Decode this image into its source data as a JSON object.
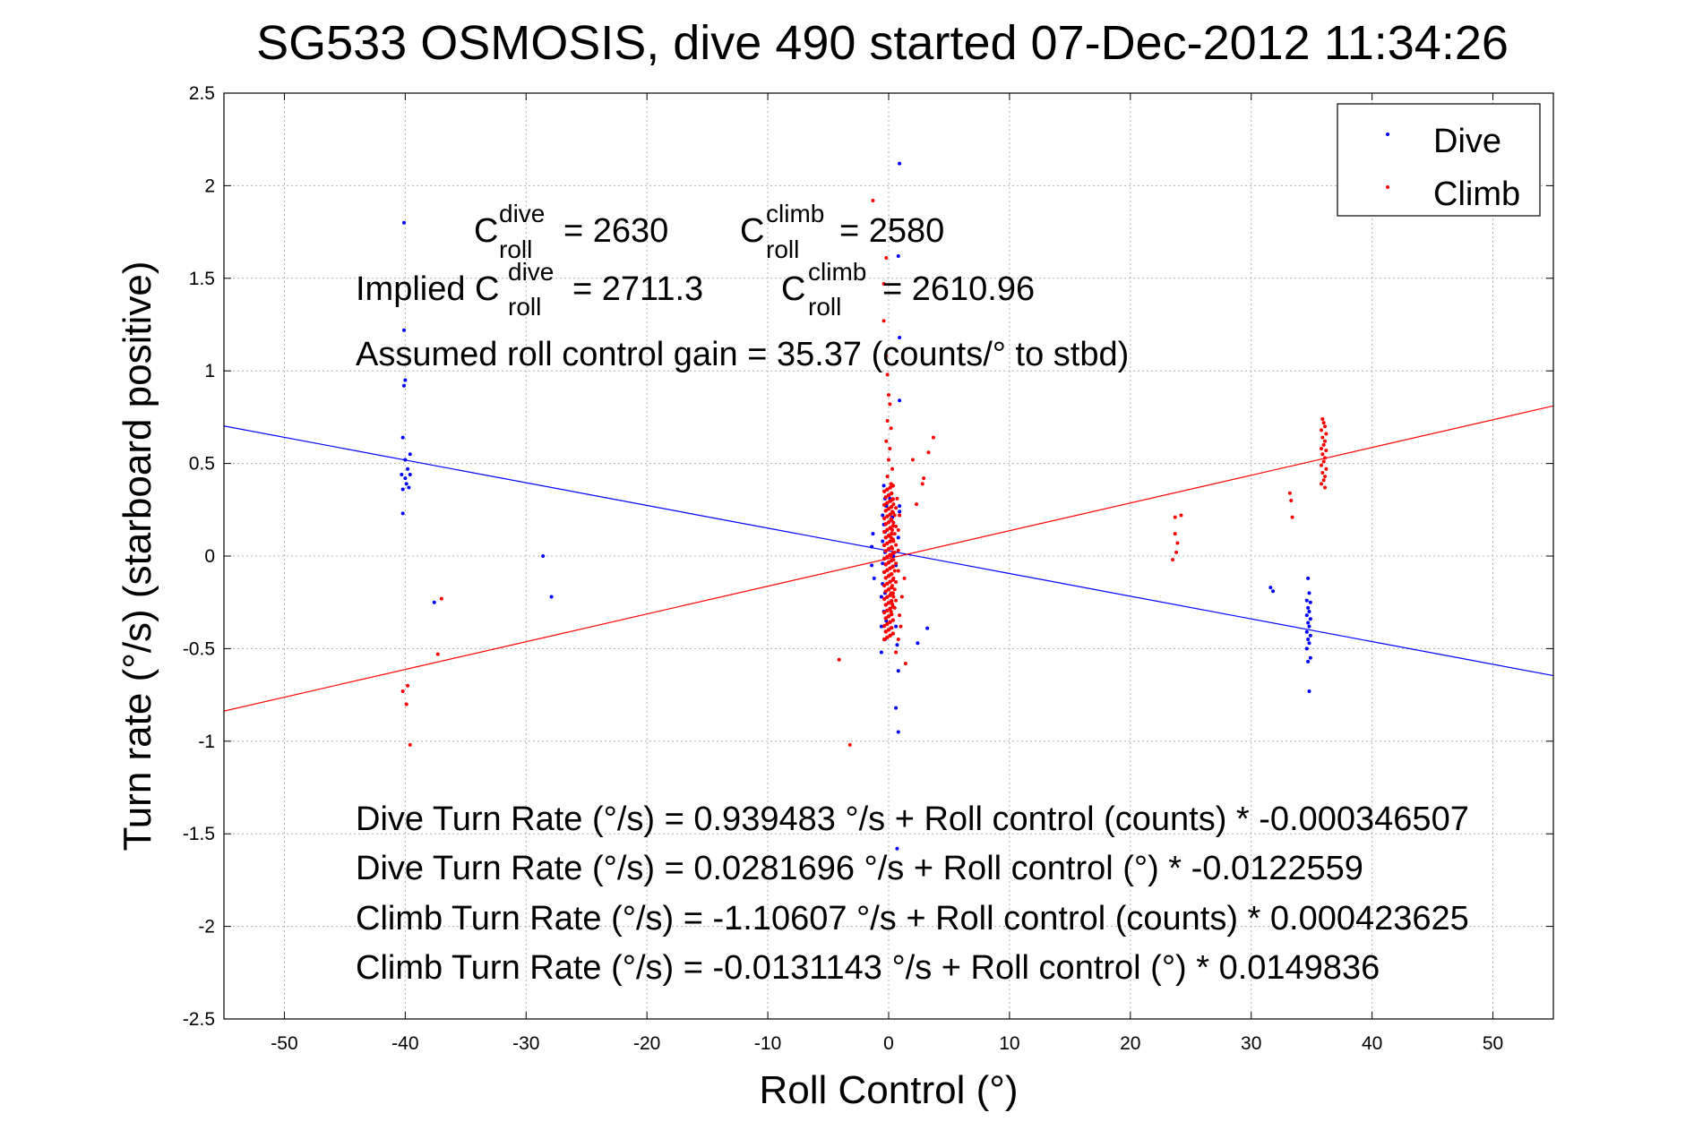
{
  "chart_data": {
    "type": "scatter",
    "title": "SG533 OSMOSIS, dive 490 started 07-Dec-2012 11:34:26",
    "xlabel": "Roll Control (°)",
    "ylabel": "Turn rate (°/s)  (starboard positive)",
    "xlim": [
      -55,
      55
    ],
    "ylim": [
      -2.5,
      2.5
    ],
    "x_ticks": [
      -50,
      -40,
      -30,
      -20,
      -10,
      0,
      10,
      20,
      30,
      40,
      50
    ],
    "y_ticks": [
      -2.5,
      -2,
      -1.5,
      -1,
      -0.5,
      0,
      0.5,
      1,
      1.5,
      2,
      2.5
    ],
    "x_tick_labels": [
      "-50",
      "-40",
      "-30",
      "-20",
      "-10",
      "0",
      "10",
      "20",
      "30",
      "40",
      "50"
    ],
    "y_tick_labels": [
      "-2.5",
      "-2",
      "-1.5",
      "-1",
      "-0.5",
      "0",
      "0.5",
      "1",
      "1.5",
      "2",
      "2.5"
    ],
    "grid": true,
    "legend_position": "top-right",
    "legend": [
      {
        "label": "Dive",
        "color": "#0000ff"
      },
      {
        "label": "Climb",
        "color": "#ff0000"
      }
    ],
    "series": [
      {
        "name": "Dive",
        "color": "#0000ff",
        "points": [
          [
            -40.1,
            1.8
          ],
          [
            -40.1,
            1.22
          ],
          [
            -40.0,
            0.95
          ],
          [
            -40.1,
            0.92
          ],
          [
            -40.2,
            0.64
          ],
          [
            -40.0,
            0.52
          ],
          [
            -39.6,
            0.55
          ],
          [
            -39.8,
            0.47
          ],
          [
            -39.6,
            0.44
          ],
          [
            -40.0,
            0.42
          ],
          [
            -40.3,
            0.44
          ],
          [
            -39.9,
            0.39
          ],
          [
            -40.2,
            0.36
          ],
          [
            -39.7,
            0.37
          ],
          [
            -40.2,
            0.23
          ],
          [
            -37.6,
            -0.25
          ],
          [
            -28.6,
            0.0
          ],
          [
            -27.9,
            -0.22
          ],
          [
            -0.4,
            0.38
          ],
          [
            -0.3,
            0.31
          ],
          [
            -0.2,
            0.27
          ],
          [
            -0.5,
            0.22
          ],
          [
            -0.4,
            0.17
          ],
          [
            -0.3,
            0.13
          ],
          [
            -1.3,
            0.12
          ],
          [
            -1.4,
            0.05
          ],
          [
            -0.5,
            0.08
          ],
          [
            -0.3,
            0.02
          ],
          [
            -0.5,
            -0.04
          ],
          [
            -1.4,
            -0.05
          ],
          [
            -1.2,
            -0.12
          ],
          [
            -0.5,
            -0.15
          ],
          [
            -0.3,
            -0.2
          ],
          [
            -0.6,
            -0.22
          ],
          [
            -0.4,
            -0.3
          ],
          [
            -0.2,
            -0.35
          ],
          [
            -0.6,
            -0.38
          ],
          [
            -0.3,
            -0.45
          ],
          [
            -0.6,
            -0.52
          ],
          [
            0.1,
            0.31
          ],
          [
            0.3,
            0.21
          ],
          [
            0.4,
            0.0
          ],
          [
            0.9,
            0.27
          ],
          [
            0.9,
            0.24
          ],
          [
            0.8,
            0.1
          ],
          [
            0.6,
            -0.05
          ],
          [
            0.6,
            -0.38
          ],
          [
            0.7,
            -0.48
          ],
          [
            0.8,
            -0.62
          ],
          [
            0.6,
            -0.82
          ],
          [
            0.8,
            -0.95
          ],
          [
            0.9,
            2.12
          ],
          [
            0.8,
            1.62
          ],
          [
            0.9,
            1.18
          ],
          [
            0.9,
            0.84
          ],
          [
            0.7,
            -1.58
          ],
          [
            2.4,
            -0.47
          ],
          [
            3.2,
            -0.39
          ],
          [
            31.6,
            -0.17
          ],
          [
            31.8,
            -0.19
          ],
          [
            34.7,
            -0.12
          ],
          [
            34.8,
            -0.2
          ],
          [
            34.6,
            -0.24
          ],
          [
            34.9,
            -0.25
          ],
          [
            34.7,
            -0.28
          ],
          [
            34.8,
            -0.3
          ],
          [
            34.6,
            -0.32
          ],
          [
            34.9,
            -0.34
          ],
          [
            34.7,
            -0.36
          ],
          [
            34.8,
            -0.38
          ],
          [
            34.6,
            -0.41
          ],
          [
            34.9,
            -0.43
          ],
          [
            34.7,
            -0.45
          ],
          [
            34.8,
            -0.47
          ],
          [
            34.6,
            -0.5
          ],
          [
            34.9,
            -0.55
          ],
          [
            34.7,
            -0.57
          ],
          [
            34.8,
            -0.73
          ]
        ]
      },
      {
        "name": "Climb",
        "color": "#ff0000",
        "points": [
          [
            -40.2,
            -0.73
          ],
          [
            -39.8,
            -0.7
          ],
          [
            -39.9,
            -0.8
          ],
          [
            -39.6,
            -1.02
          ],
          [
            -37.3,
            -0.53
          ],
          [
            -37.0,
            -0.23
          ],
          [
            -4.1,
            -0.56
          ],
          [
            -3.2,
            -1.02
          ],
          [
            -1.3,
            1.92
          ],
          [
            -0.2,
            1.61
          ],
          [
            -0.4,
            1.47
          ],
          [
            -0.4,
            1.27
          ],
          [
            -0.2,
            1.08
          ],
          [
            -0.1,
            0.98
          ],
          [
            0.0,
            0.87
          ],
          [
            0.1,
            0.82
          ],
          [
            -0.1,
            0.73
          ],
          [
            0.2,
            0.69
          ],
          [
            -0.2,
            0.62
          ],
          [
            0.1,
            0.58
          ],
          [
            0.0,
            0.52
          ],
          [
            0.3,
            0.47
          ],
          [
            -0.1,
            0.43
          ],
          [
            0.2,
            0.39
          ],
          [
            0.7,
            0.31
          ],
          [
            0.9,
            0.22
          ],
          [
            0.8,
            0.14
          ],
          [
            0.8,
            0.03
          ],
          [
            0.8,
            -0.08
          ],
          [
            1.3,
            -0.12
          ],
          [
            1.1,
            -0.22
          ],
          [
            0.9,
            -0.32
          ],
          [
            1.0,
            -0.38
          ],
          [
            0.8,
            -0.45
          ],
          [
            0.6,
            -0.52
          ],
          [
            1.4,
            -0.58
          ],
          [
            2.0,
            0.52
          ],
          [
            2.3,
            0.28
          ],
          [
            2.8,
            0.39
          ],
          [
            2.9,
            0.42
          ],
          [
            3.3,
            0.56
          ],
          [
            3.7,
            0.64
          ],
          [
            23.7,
            0.21
          ],
          [
            24.2,
            0.22
          ],
          [
            23.7,
            0.12
          ],
          [
            23.9,
            0.07
          ],
          [
            23.8,
            0.02
          ],
          [
            23.5,
            -0.02
          ],
          [
            33.2,
            0.34
          ],
          [
            33.3,
            0.3
          ],
          [
            33.4,
            0.21
          ],
          [
            35.9,
            0.74
          ],
          [
            36.0,
            0.72
          ],
          [
            36.1,
            0.7
          ],
          [
            35.8,
            0.68
          ],
          [
            36.2,
            0.66
          ],
          [
            35.9,
            0.64
          ],
          [
            36.1,
            0.62
          ],
          [
            36.0,
            0.6
          ],
          [
            35.8,
            0.58
          ],
          [
            36.2,
            0.57
          ],
          [
            35.9,
            0.55
          ],
          [
            36.1,
            0.53
          ],
          [
            36.0,
            0.51
          ],
          [
            35.8,
            0.49
          ],
          [
            36.2,
            0.47
          ],
          [
            35.9,
            0.45
          ],
          [
            36.1,
            0.43
          ],
          [
            36.0,
            0.41
          ],
          [
            35.8,
            0.39
          ],
          [
            36.1,
            0.37
          ]
        ]
      }
    ],
    "dense_cluster": {
      "center_x": 0.0,
      "y_range": [
        -0.45,
        0.38
      ]
    },
    "fit_lines": [
      {
        "name": "Dive",
        "color": "#0000ff",
        "intercept": 0.0281696,
        "slope": -0.0122559
      },
      {
        "name": "Climb",
        "color": "#ff0000",
        "intercept": -0.0131143,
        "slope": 0.0149836
      }
    ],
    "annotations": {
      "c_roll_dive": {
        "base": "C",
        "sup": "dive",
        "sub": "roll",
        "value": "= 2630"
      },
      "c_roll_climb": {
        "base": "C",
        "sup": "climb",
        "sub": "roll",
        "value": "= 2580"
      },
      "implied_prefix": "Implied C",
      "implied_dive": {
        "sup": "dive",
        "sub": "roll",
        "value": "= 2711.3"
      },
      "implied_climb": {
        "base": "C",
        "sup": "climb",
        "sub": "roll",
        "value": "= 2610.96"
      },
      "gain": "Assumed roll control gain = 35.37 (counts/° to stbd)",
      "eq1": "Dive Turn Rate (°/s) = 0.939483 °/s + Roll control (counts) * -0.000346507",
      "eq2": "Dive Turn Rate (°/s) = 0.0281696 °/s + Roll control (°) * -0.0122559",
      "eq3": "Climb Turn Rate (°/s) = -1.10607 °/s + Roll control (counts) * 0.000423625",
      "eq4": "Climb Turn Rate (°/s) = -0.0131143 °/s + Roll control (°) * 0.0149836"
    }
  }
}
